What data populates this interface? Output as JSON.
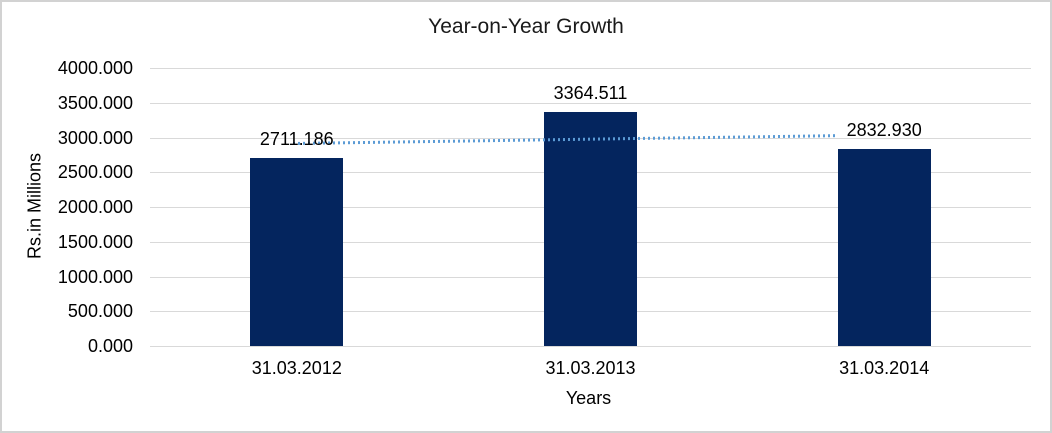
{
  "chart_data": {
    "type": "bar",
    "title": "Year-on-Year Growth",
    "xlabel": "Years",
    "ylabel": "Rs.in Millions",
    "categories": [
      "31.03.2012",
      "31.03.2013",
      "31.03.2014"
    ],
    "values": [
      2711.186,
      3364.511,
      2832.93
    ],
    "data_labels": [
      "2711.186",
      "3364.511",
      "2832.930"
    ],
    "ylim": [
      0,
      4000
    ],
    "ytick_values": [
      0,
      500,
      1000,
      1500,
      2000,
      2500,
      3000,
      3500,
      4000
    ],
    "ytick_labels": [
      "0.000",
      "500.000",
      "1000.000",
      "1500.000",
      "2000.000",
      "2500.000",
      "3000.000",
      "3500.000",
      "4000.000"
    ],
    "grid": true,
    "legend": "none",
    "bar_color": "#04255e",
    "gridline_color": "#d9d9d9",
    "trendline": {
      "type": "linear",
      "style": "dotted",
      "color": "#5b9bd5",
      "start_value": 2908.7,
      "end_value": 3030.4
    }
  }
}
